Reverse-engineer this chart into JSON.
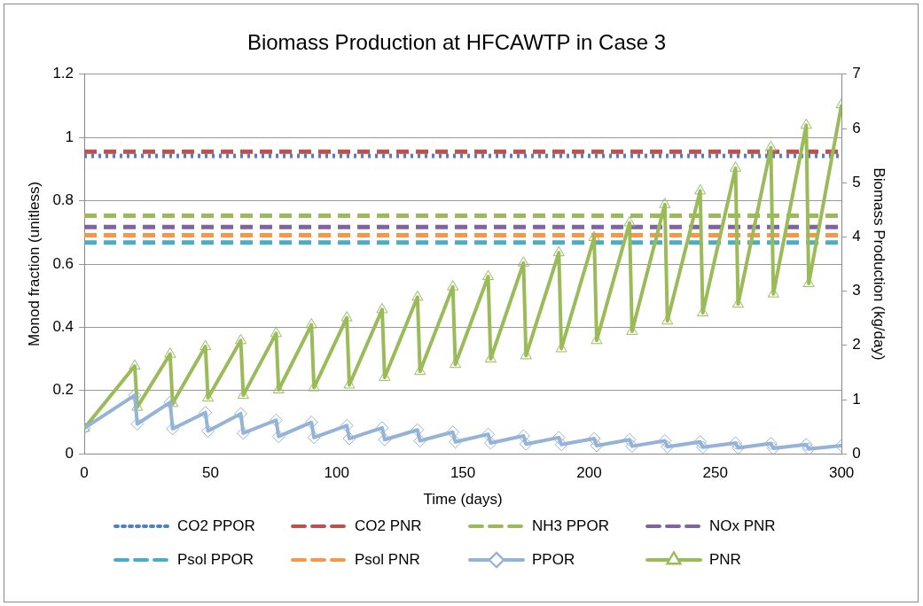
{
  "chart_data": {
    "type": "line",
    "title": "Biomass Production at HFCAWTP in Case 3",
    "xlabel": "Time (days)",
    "ylabel": "Monod fraction (unitless)",
    "y2label": "Biomass Production (kg/day)",
    "xlim": [
      0,
      300
    ],
    "xticks": [
      0,
      50,
      100,
      150,
      200,
      250,
      300
    ],
    "ylim": [
      0,
      1.2
    ],
    "yticks": [
      0,
      0.2,
      0.4,
      0.6,
      0.8,
      1,
      1.2
    ],
    "y2lim": [
      0,
      7
    ],
    "y2ticks": [
      0,
      1,
      2,
      3,
      4,
      5,
      6,
      7
    ],
    "grid": "y",
    "legend": "bottom",
    "series": [
      {
        "name": "CO2 PPOR",
        "color": "#4f81bd",
        "line_style": "dotted",
        "marker": "none",
        "x": [
          0,
          300
        ],
        "values": [
          0.942,
          0.942
        ]
      },
      {
        "name": "CO2 PNR",
        "color": "#c0504d",
        "line_style": "dashed",
        "marker": "none",
        "x": [
          0,
          300
        ],
        "values": [
          0.955,
          0.955
        ]
      },
      {
        "name": "NH3 PPOR",
        "color": "#9bbb59",
        "line_style": "dashed",
        "marker": "none",
        "x": [
          0,
          300
        ],
        "values": [
          0.753,
          0.753
        ]
      },
      {
        "name": "NOx PNR",
        "color": "#8064a2",
        "line_style": "dashed",
        "marker": "none",
        "x": [
          0,
          300
        ],
        "values": [
          0.717,
          0.717
        ]
      },
      {
        "name": "Psol PPOR",
        "color": "#4bacc6",
        "line_style": "dashed",
        "marker": "none",
        "x": [
          0,
          300
        ],
        "values": [
          0.668,
          0.668
        ]
      },
      {
        "name": "Psol PNR",
        "color": "#f79646",
        "line_style": "dashed",
        "marker": "none",
        "x": [
          0,
          300
        ],
        "values": [
          0.691,
          0.691
        ]
      },
      {
        "name": "PPOR",
        "color": "#95b3d7",
        "line_style": "solid",
        "marker": "diamond",
        "axis": "y2",
        "x": [
          0,
          20,
          21,
          34,
          35,
          48,
          49,
          62,
          63,
          76,
          77,
          90,
          91,
          104,
          105,
          118,
          119,
          132,
          133,
          146,
          147,
          160,
          161,
          174,
          175,
          188,
          189,
          202,
          203,
          216,
          217,
          230,
          231,
          244,
          245,
          258,
          259,
          272,
          273,
          286,
          287,
          300
        ],
        "values": [
          0.47,
          1.08,
          0.55,
          0.95,
          0.46,
          0.76,
          0.42,
          0.74,
          0.38,
          0.62,
          0.32,
          0.58,
          0.3,
          0.52,
          0.28,
          0.48,
          0.26,
          0.44,
          0.24,
          0.4,
          0.22,
          0.36,
          0.2,
          0.33,
          0.18,
          0.3,
          0.17,
          0.28,
          0.15,
          0.26,
          0.14,
          0.24,
          0.13,
          0.22,
          0.12,
          0.2,
          0.11,
          0.19,
          0.1,
          0.17,
          0.09,
          0.15
        ]
      },
      {
        "name": "PNR",
        "color": "#9bbb59",
        "line_style": "solid",
        "marker": "triangle",
        "axis": "y2",
        "x": [
          0,
          20,
          21,
          34,
          35,
          48,
          49,
          62,
          63,
          76,
          77,
          90,
          91,
          104,
          105,
          118,
          119,
          132,
          133,
          146,
          147,
          160,
          161,
          174,
          175,
          188,
          189,
          202,
          203,
          216,
          217,
          230,
          231,
          244,
          245,
          258,
          259,
          272,
          273,
          286,
          287,
          300
        ],
        "values": [
          0.47,
          1.62,
          0.86,
          1.84,
          0.93,
          1.98,
          1.03,
          2.09,
          1.08,
          2.22,
          1.18,
          2.38,
          1.22,
          2.51,
          1.27,
          2.66,
          1.41,
          2.89,
          1.52,
          3.08,
          1.65,
          3.27,
          1.75,
          3.52,
          1.81,
          3.71,
          1.94,
          3.99,
          2.09,
          4.26,
          2.26,
          4.6,
          2.45,
          4.85,
          2.6,
          5.27,
          2.76,
          5.65,
          2.95,
          6.06,
          3.14,
          6.44
        ]
      }
    ]
  }
}
